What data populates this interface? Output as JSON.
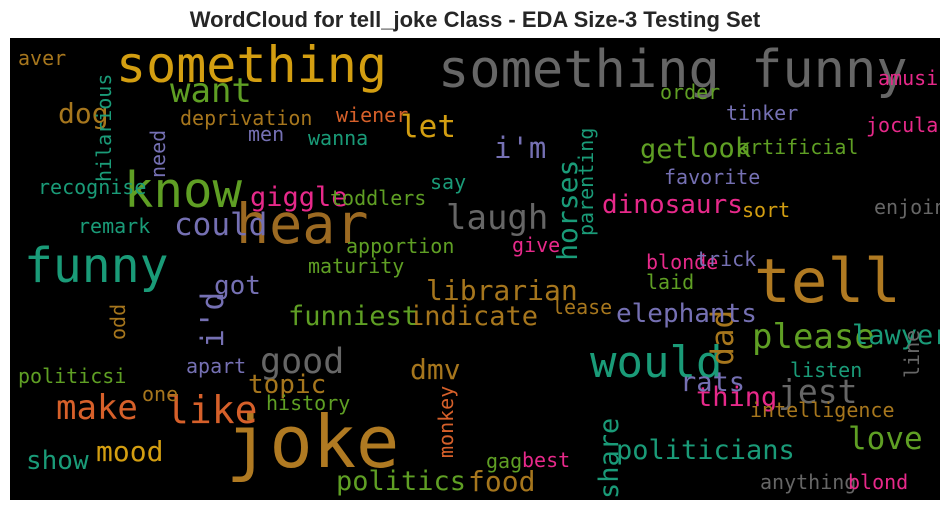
{
  "chart_data": {
    "type": "wordcloud",
    "title": "WordCloud for tell_joke Class - EDA Size-3 Testing Set",
    "background": "#000000",
    "words": [
      {
        "text": "joke",
        "weight": 1.0,
        "color": "#b07a22",
        "vertical": false
      },
      {
        "text": "tell",
        "weight": 0.82,
        "color": "#b07a22",
        "vertical": false
      },
      {
        "text": "hear",
        "weight": 0.72,
        "color": "#9c6a22",
        "vertical": false
      },
      {
        "text": "something funny",
        "weight": 0.68,
        "color": "#666666",
        "vertical": false
      },
      {
        "text": "something",
        "weight": 0.64,
        "color": "#d39e11",
        "vertical": false
      },
      {
        "text": "know",
        "weight": 0.62,
        "color": "#5f9f24",
        "vertical": false
      },
      {
        "text": "funny",
        "weight": 0.6,
        "color": "#1a9b78",
        "vertical": false
      },
      {
        "text": "would",
        "weight": 0.54,
        "color": "#1a9b78",
        "vertical": false
      },
      {
        "text": "like",
        "weight": 0.45,
        "color": "#d6602a",
        "vertical": false
      },
      {
        "text": "good",
        "weight": 0.4,
        "color": "#666666",
        "vertical": false
      },
      {
        "text": "make",
        "weight": 0.38,
        "color": "#d6602a",
        "vertical": false
      },
      {
        "text": "please",
        "weight": 0.38,
        "color": "#5f9f24",
        "vertical": false
      },
      {
        "text": "want",
        "weight": 0.38,
        "color": "#5f9f24",
        "vertical": false
      },
      {
        "text": "laugh",
        "weight": 0.37,
        "color": "#666666",
        "vertical": false
      },
      {
        "text": "jest",
        "weight": 0.36,
        "color": "#666666",
        "vertical": false
      },
      {
        "text": "could",
        "weight": 0.33,
        "color": "#7570b3",
        "vertical": false
      },
      {
        "text": "love",
        "weight": 0.32,
        "color": "#5f9f24",
        "vertical": false
      },
      {
        "text": "let",
        "weight": 0.32,
        "color": "#d39e11",
        "vertical": false
      },
      {
        "text": "dad",
        "weight": 0.32,
        "color": "#a6761d",
        "vertical": true
      },
      {
        "text": "i'd",
        "weight": 0.32,
        "color": "#7570b3",
        "vertical": true
      },
      {
        "text": "i'm",
        "weight": 0.3,
        "color": "#7570b3",
        "vertical": false
      },
      {
        "text": "librarian",
        "weight": 0.28,
        "color": "#a6761d",
        "vertical": false
      },
      {
        "text": "horses",
        "weight": 0.28,
        "color": "#1a9b78",
        "vertical": true
      },
      {
        "text": "dmv",
        "weight": 0.28,
        "color": "#a6761d",
        "vertical": false
      },
      {
        "text": "food",
        "weight": 0.28,
        "color": "#a6761d",
        "vertical": false
      },
      {
        "text": "mood",
        "weight": 0.28,
        "color": "#d39e11",
        "vertical": false
      },
      {
        "text": "dog",
        "weight": 0.28,
        "color": "#a6761d",
        "vertical": false
      },
      {
        "text": "politicians",
        "weight": 0.26,
        "color": "#1a9b78",
        "vertical": false
      },
      {
        "text": "politics",
        "weight": 0.26,
        "color": "#5f9f24",
        "vertical": false
      },
      {
        "text": "indicate",
        "weight": 0.26,
        "color": "#a6761d",
        "vertical": false
      },
      {
        "text": "funniest",
        "weight": 0.26,
        "color": "#5f9f24",
        "vertical": false
      },
      {
        "text": "lawyer",
        "weight": 0.26,
        "color": "#1a9b78",
        "vertical": false
      },
      {
        "text": "giggle",
        "weight": 0.26,
        "color": "#e7298a",
        "vertical": false
      },
      {
        "text": "look",
        "weight": 0.26,
        "color": "#5f9f24",
        "vertical": false
      },
      {
        "text": "get",
        "weight": 0.26,
        "color": "#5f9f24",
        "vertical": false
      },
      {
        "text": "share",
        "weight": 0.26,
        "color": "#1a9b78",
        "vertical": true
      },
      {
        "text": "thing",
        "weight": 0.26,
        "color": "#e7298a",
        "vertical": false
      },
      {
        "text": "rats",
        "weight": 0.26,
        "color": "#7570b3",
        "vertical": false
      },
      {
        "text": "show",
        "weight": 0.24,
        "color": "#1a9b78",
        "vertical": false
      },
      {
        "text": "topic",
        "weight": 0.24,
        "color": "#a6761d",
        "vertical": false
      },
      {
        "text": "got",
        "weight": 0.24,
        "color": "#7570b3",
        "vertical": false
      },
      {
        "text": "elephants",
        "weight": 0.24,
        "color": "#7570b3",
        "vertical": false
      },
      {
        "text": "dinosaurs",
        "weight": 0.24,
        "color": "#e7298a",
        "vertical": false
      },
      {
        "text": "aver",
        "weight": 0.14,
        "color": "#a6761d",
        "vertical": false
      },
      {
        "text": "hilarious",
        "weight": 0.14,
        "color": "#1a9b78",
        "vertical": true
      },
      {
        "text": "need",
        "weight": 0.14,
        "color": "#7570b3",
        "vertical": true
      },
      {
        "text": "deprivation",
        "weight": 0.14,
        "color": "#a6761d",
        "vertical": false
      },
      {
        "text": "wiener",
        "weight": 0.14,
        "color": "#d6602a",
        "vertical": false
      },
      {
        "text": "men",
        "weight": 0.14,
        "color": "#7570b3",
        "vertical": false
      },
      {
        "text": "wanna",
        "weight": 0.14,
        "color": "#1a9b78",
        "vertical": false
      },
      {
        "text": "recognise",
        "weight": 0.14,
        "color": "#1a9b78",
        "vertical": false
      },
      {
        "text": "toddlers",
        "weight": 0.14,
        "color": "#5f9f24",
        "vertical": false
      },
      {
        "text": "say",
        "weight": 0.14,
        "color": "#1a9b78",
        "vertical": false
      },
      {
        "text": "remark",
        "weight": 0.14,
        "color": "#1a9b78",
        "vertical": false
      },
      {
        "text": "apportion",
        "weight": 0.14,
        "color": "#5f9f24",
        "vertical": false
      },
      {
        "text": "give",
        "weight": 0.14,
        "color": "#e7298a",
        "vertical": false
      },
      {
        "text": "maturity",
        "weight": 0.14,
        "color": "#5f9f24",
        "vertical": false
      },
      {
        "text": "odd",
        "weight": 0.14,
        "color": "#a6761d",
        "vertical": true
      },
      {
        "text": "politicsi",
        "weight": 0.14,
        "color": "#5f9f24",
        "vertical": false
      },
      {
        "text": "apart",
        "weight": 0.14,
        "color": "#7570b3",
        "vertical": false
      },
      {
        "text": "one",
        "weight": 0.14,
        "color": "#a6761d",
        "vertical": false
      },
      {
        "text": "history",
        "weight": 0.14,
        "color": "#5f9f24",
        "vertical": false
      },
      {
        "text": "monkey",
        "weight": 0.14,
        "color": "#d6602a",
        "vertical": true
      },
      {
        "text": "gag",
        "weight": 0.14,
        "color": "#5f9f24",
        "vertical": false
      },
      {
        "text": "best",
        "weight": 0.14,
        "color": "#e7298a",
        "vertical": false
      },
      {
        "text": "parenting",
        "weight": 0.14,
        "color": "#1a9b78",
        "vertical": true
      },
      {
        "text": "order",
        "weight": 0.14,
        "color": "#5f9f24",
        "vertical": false
      },
      {
        "text": "tinker",
        "weight": 0.14,
        "color": "#7570b3",
        "vertical": false
      },
      {
        "text": "artificial",
        "weight": 0.14,
        "color": "#5f9f24",
        "vertical": false
      },
      {
        "text": "favorite",
        "weight": 0.14,
        "color": "#7570b3",
        "vertical": false
      },
      {
        "text": "sort",
        "weight": 0.14,
        "color": "#d39e11",
        "vertical": false
      },
      {
        "text": "blonde",
        "weight": 0.14,
        "color": "#e7298a",
        "vertical": false
      },
      {
        "text": "trick",
        "weight": 0.14,
        "color": "#7570b3",
        "vertical": false
      },
      {
        "text": "laid",
        "weight": 0.14,
        "color": "#5f9f24",
        "vertical": false
      },
      {
        "text": "lease",
        "weight": 0.14,
        "color": "#a6761d",
        "vertical": false
      },
      {
        "text": "listen",
        "weight": 0.14,
        "color": "#1a9b78",
        "vertical": false
      },
      {
        "text": "intelligence",
        "weight": 0.14,
        "color": "#a6761d",
        "vertical": false
      },
      {
        "text": "anything",
        "weight": 0.14,
        "color": "#666666",
        "vertical": false
      },
      {
        "text": "blond",
        "weight": 0.14,
        "color": "#e7298a",
        "vertical": false
      },
      {
        "text": "amusing",
        "weight": 0.14,
        "color": "#e7298a",
        "vertical": false
      },
      {
        "text": "jocularity",
        "weight": 0.14,
        "color": "#e7298a",
        "vertical": false
      },
      {
        "text": "enjoin",
        "weight": 0.14,
        "color": "#666666",
        "vertical": false
      },
      {
        "text": "line",
        "weight": 0.14,
        "color": "#666666",
        "vertical": true
      }
    ]
  }
}
